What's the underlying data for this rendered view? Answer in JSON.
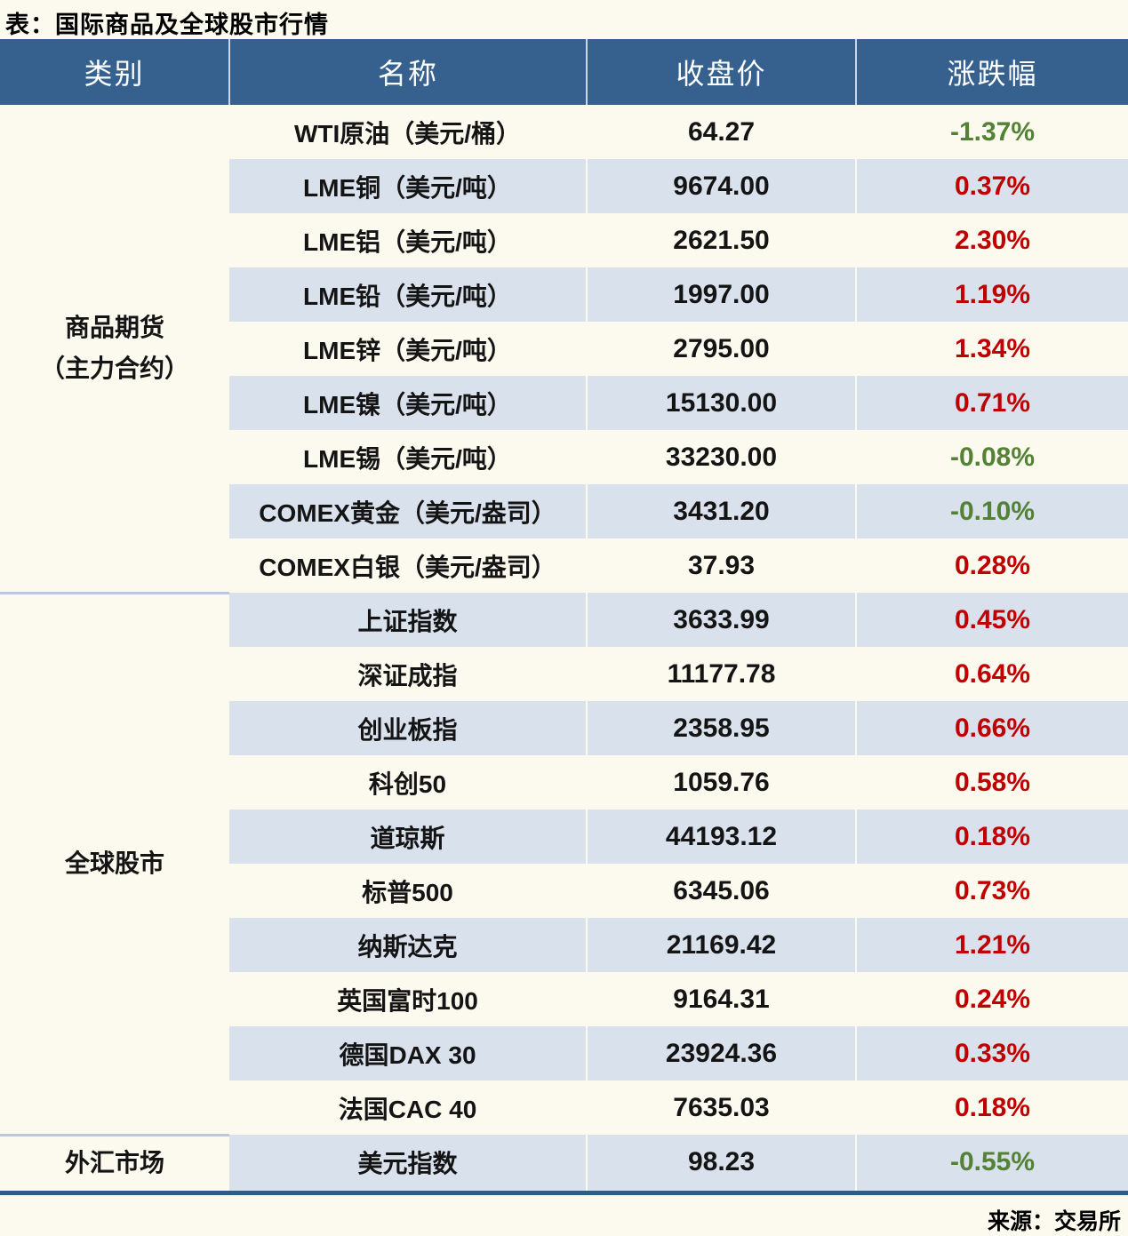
{
  "title": "表：国际商品及全球股市行情",
  "source_note": "来源：交易所",
  "colors": {
    "header_bg": "#36618E",
    "header_text": "#FFFFFF",
    "alt_row_bg": "#D9E1ED",
    "page_bg": "#FCFAEF",
    "up_red": "#C00000",
    "down_green": "#548235",
    "bottom_border": "#2E5C87",
    "section_divider": "#B9C8DC"
  },
  "table": {
    "headers": [
      "类别",
      "名称",
      "收盘价",
      "涨跌幅"
    ],
    "sections": [
      {
        "category": "商品期货（主力合约）",
        "category_lines": [
          "商品期货",
          "（主力合约）"
        ],
        "rows": [
          {
            "name": "WTI原油（美元/桶）",
            "close": "64.27",
            "change": "-1.37%"
          },
          {
            "name": "LME铜（美元/吨）",
            "close": "9674.00",
            "change": "0.37%"
          },
          {
            "name": "LME铝（美元/吨）",
            "close": "2621.50",
            "change": "2.30%"
          },
          {
            "name": "LME铅（美元/吨）",
            "close": "1997.00",
            "change": "1.19%"
          },
          {
            "name": "LME锌（美元/吨）",
            "close": "2795.00",
            "change": "1.34%"
          },
          {
            "name": "LME镍（美元/吨）",
            "close": "15130.00",
            "change": "0.71%"
          },
          {
            "name": "LME锡（美元/吨）",
            "close": "33230.00",
            "change": "-0.08%"
          },
          {
            "name": "COMEX黄金（美元/盎司）",
            "close": "3431.20",
            "change": "-0.10%"
          },
          {
            "name": "COMEX白银（美元/盎司）",
            "close": "37.93",
            "change": "0.28%"
          }
        ]
      },
      {
        "category": "全球股市",
        "category_lines": [
          "全球股市"
        ],
        "rows": [
          {
            "name": "上证指数",
            "close": "3633.99",
            "change": "0.45%"
          },
          {
            "name": "深证成指",
            "close": "11177.78",
            "change": "0.64%"
          },
          {
            "name": "创业板指",
            "close": "2358.95",
            "change": "0.66%"
          },
          {
            "name": "科创50",
            "close": "1059.76",
            "change": "0.58%"
          },
          {
            "name": "道琼斯",
            "close": "44193.12",
            "change": "0.18%"
          },
          {
            "name": "标普500",
            "close": "6345.06",
            "change": "0.73%"
          },
          {
            "name": "纳斯达克",
            "close": "21169.42",
            "change": "1.21%"
          },
          {
            "name": "英国富时100",
            "close": "9164.31",
            "change": "0.24%"
          },
          {
            "name": "德国DAX 30",
            "close": "23924.36",
            "change": "0.33%"
          },
          {
            "name": "法国CAC 40",
            "close": "7635.03",
            "change": "0.18%"
          }
        ]
      },
      {
        "category": "外汇市场",
        "category_lines": [
          "外汇市场"
        ],
        "rows": [
          {
            "name": "美元指数",
            "close": "98.23",
            "change": "-0.55%"
          }
        ]
      }
    ]
  },
  "chart_data": {
    "type": "table",
    "title": "表：国际商品及全球股市行情",
    "columns": [
      "类别",
      "名称",
      "收盘价",
      "涨跌幅"
    ],
    "rows": [
      {
        "category": "商品期货（主力合约）",
        "name": "WTI原油（美元/桶）",
        "close": 64.27,
        "change_pct": -1.37
      },
      {
        "category": "商品期货（主力合约）",
        "name": "LME铜（美元/吨）",
        "close": 9674.0,
        "change_pct": 0.37
      },
      {
        "category": "商品期货（主力合约）",
        "name": "LME铝（美元/吨）",
        "close": 2621.5,
        "change_pct": 2.3
      },
      {
        "category": "商品期货（主力合约）",
        "name": "LME铅（美元/吨）",
        "close": 1997.0,
        "change_pct": 1.19
      },
      {
        "category": "商品期货（主力合约）",
        "name": "LME锌（美元/吨）",
        "close": 2795.0,
        "change_pct": 1.34
      },
      {
        "category": "商品期货（主力合约）",
        "name": "LME镍（美元/吨）",
        "close": 15130.0,
        "change_pct": 0.71
      },
      {
        "category": "商品期货（主力合约）",
        "name": "LME锡（美元/吨）",
        "close": 33230.0,
        "change_pct": -0.08
      },
      {
        "category": "商品期货（主力合约）",
        "name": "COMEX黄金（美元/盎司）",
        "close": 3431.2,
        "change_pct": -0.1
      },
      {
        "category": "商品期货（主力合约）",
        "name": "COMEX白银（美元/盎司）",
        "close": 37.93,
        "change_pct": 0.28
      },
      {
        "category": "全球股市",
        "name": "上证指数",
        "close": 3633.99,
        "change_pct": 0.45
      },
      {
        "category": "全球股市",
        "name": "深证成指",
        "close": 11177.78,
        "change_pct": 0.64
      },
      {
        "category": "全球股市",
        "name": "创业板指",
        "close": 2358.95,
        "change_pct": 0.66
      },
      {
        "category": "全球股市",
        "name": "科创50",
        "close": 1059.76,
        "change_pct": 0.58
      },
      {
        "category": "全球股市",
        "name": "道琼斯",
        "close": 44193.12,
        "change_pct": 0.18
      },
      {
        "category": "全球股市",
        "name": "标普500",
        "close": 6345.06,
        "change_pct": 0.73
      },
      {
        "category": "全球股市",
        "name": "纳斯达克",
        "close": 21169.42,
        "change_pct": 1.21
      },
      {
        "category": "全球股市",
        "name": "英国富时100",
        "close": 9164.31,
        "change_pct": 0.24
      },
      {
        "category": "全球股市",
        "name": "德国DAX 30",
        "close": 23924.36,
        "change_pct": 0.33
      },
      {
        "category": "全球股市",
        "name": "法国CAC 40",
        "close": 7635.03,
        "change_pct": 0.18
      },
      {
        "category": "外汇市场",
        "name": "美元指数",
        "close": 98.23,
        "change_pct": -0.55
      }
    ],
    "color_convention": "positive=red #C00000, negative=green #548235",
    "source": "来源：交易所"
  }
}
